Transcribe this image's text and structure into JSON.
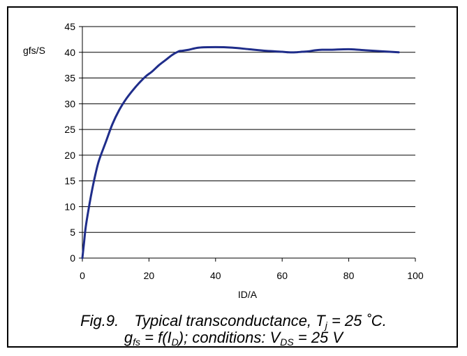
{
  "chart_data": {
    "type": "line",
    "ylabel": "gfs/S",
    "xlabel": "ID/A",
    "xlim": [
      0,
      100
    ],
    "ylim": [
      0,
      45
    ],
    "x_ticks": [
      "0",
      "20",
      "40",
      "60",
      "80",
      "100"
    ],
    "y_ticks": [
      "0",
      "5",
      "10",
      "15",
      "20",
      "25",
      "30",
      "35",
      "40",
      "45"
    ],
    "grid": "horizontal",
    "legend": "none",
    "line_color": "#1f2d8a",
    "series": [
      {
        "x": [
          0,
          0.5,
          1,
          2,
          3,
          4,
          5,
          7,
          9,
          11,
          13,
          15,
          17,
          19,
          21,
          23,
          25,
          27,
          29,
          30,
          32,
          35,
          40,
          45,
          50,
          55,
          60,
          62,
          64,
          66,
          68,
          70,
          72,
          75,
          80,
          85,
          90,
          95
        ],
        "y": [
          0,
          3,
          6,
          10,
          13.5,
          16.5,
          19,
          22.5,
          26,
          28.7,
          30.8,
          32.5,
          34,
          35.3,
          36.3,
          37.5,
          38.5,
          39.5,
          40.2,
          40.3,
          40.5,
          40.9,
          41,
          40.9,
          40.6,
          40.3,
          40.1,
          40.0,
          40.0,
          40.1,
          40.2,
          40.4,
          40.5,
          40.5,
          40.6,
          40.4,
          40.2,
          40.0
        ]
      }
    ]
  },
  "caption": {
    "line1": {
      "fig": "Fig.9.",
      "text": "Typical transconductance, T",
      "sub": "j",
      "rest": " = 25 ˚C."
    },
    "line2": {
      "g": "g",
      "g_sub": "fs",
      "mid": " = f(I",
      "i_sub": "D",
      "after": "); conditions: V",
      "v_sub": "DS",
      "end": " = 25 V"
    }
  }
}
